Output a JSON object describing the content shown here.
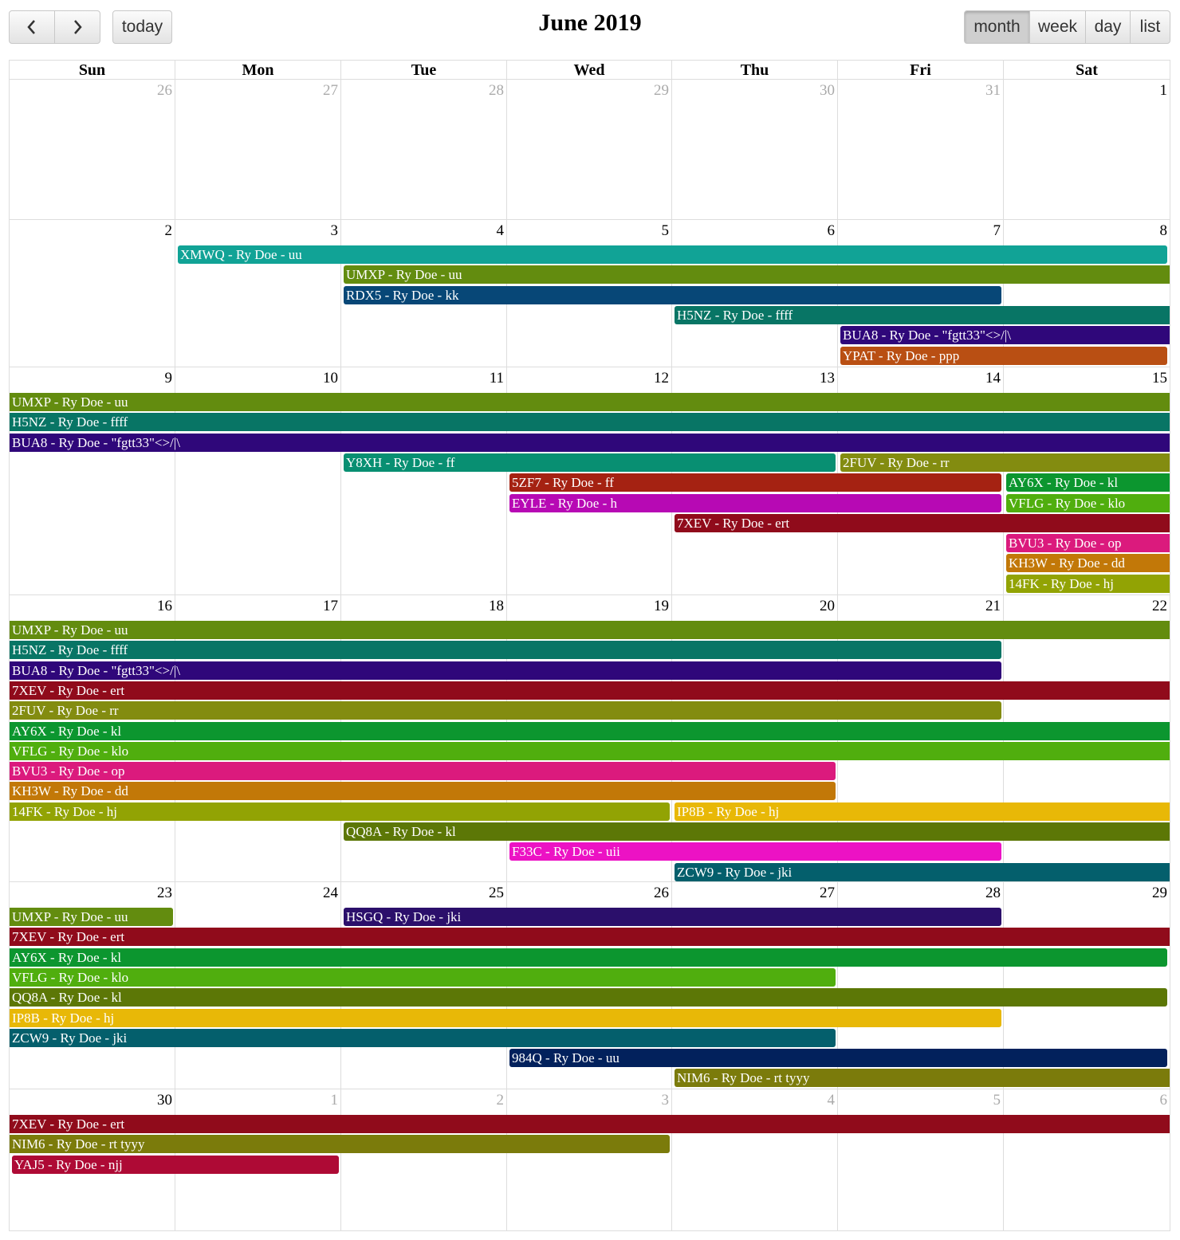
{
  "title": "June 2019",
  "nav": {
    "prev_icon": "‹",
    "next_icon": "›",
    "today_label": "today"
  },
  "views": [
    "month",
    "week",
    "day",
    "list"
  ],
  "active_view": "month",
  "day_headers": [
    "Sun",
    "Mon",
    "Tue",
    "Wed",
    "Thu",
    "Fri",
    "Sat"
  ],
  "weeks": [
    {
      "days": [
        {
          "n": "26",
          "other": true
        },
        {
          "n": "27",
          "other": true
        },
        {
          "n": "28",
          "other": true
        },
        {
          "n": "29",
          "other": true
        },
        {
          "n": "30",
          "other": true
        },
        {
          "n": "31",
          "other": true
        },
        {
          "n": "1",
          "other": false
        }
      ],
      "events": []
    },
    {
      "days": [
        {
          "n": "2",
          "other": false
        },
        {
          "n": "3",
          "other": false
        },
        {
          "n": "4",
          "other": false
        },
        {
          "n": "5",
          "other": false
        },
        {
          "n": "6",
          "other": false
        },
        {
          "n": "7",
          "other": false
        },
        {
          "n": "8",
          "other": false
        }
      ],
      "events": [
        {
          "title": "XMWQ - Ry Doe - uu",
          "color": "#11a396",
          "start": 1,
          "end": 6,
          "row": 0,
          "starts": true,
          "ends": true
        },
        {
          "title": "UMXP - Ry Doe - uu",
          "color": "#638c0f",
          "start": 2,
          "end": 6,
          "row": 1,
          "starts": true,
          "ends": false
        },
        {
          "title": "RDX5 - Ry Doe - kk",
          "color": "#074777",
          "start": 2,
          "end": 5,
          "row": 2,
          "starts": true,
          "ends": true
        },
        {
          "title": "H5NZ - Ry Doe - ffff",
          "color": "#087565",
          "start": 4,
          "end": 6,
          "row": 3,
          "starts": true,
          "ends": false
        },
        {
          "title": "BUA8 - Ry Doe - \"fgtt33\"<>/|\\",
          "color": "#2f077a",
          "start": 5,
          "end": 6,
          "row": 4,
          "starts": true,
          "ends": false
        },
        {
          "title": "YPAT - Ry Doe - ppp",
          "color": "#b94f13",
          "start": 5,
          "end": 6,
          "row": 5,
          "starts": true,
          "ends": true
        }
      ]
    },
    {
      "days": [
        {
          "n": "9",
          "other": false
        },
        {
          "n": "10",
          "other": false
        },
        {
          "n": "11",
          "other": false
        },
        {
          "n": "12",
          "other": false
        },
        {
          "n": "13",
          "other": false
        },
        {
          "n": "14",
          "other": false
        },
        {
          "n": "15",
          "other": false
        }
      ],
      "events": [
        {
          "title": "UMXP - Ry Doe - uu",
          "color": "#638c0f",
          "start": 0,
          "end": 6,
          "row": 0,
          "starts": false,
          "ends": false
        },
        {
          "title": "H5NZ - Ry Doe - ffff",
          "color": "#087565",
          "start": 0,
          "end": 6,
          "row": 1,
          "starts": false,
          "ends": false
        },
        {
          "title": "BUA8 - Ry Doe - \"fgtt33\"<>/|\\",
          "color": "#2f077a",
          "start": 0,
          "end": 6,
          "row": 2,
          "starts": false,
          "ends": false
        },
        {
          "title": "Y8XH - Ry Doe - ff",
          "color": "#088f72",
          "start": 2,
          "end": 4,
          "row": 3,
          "starts": true,
          "ends": true
        },
        {
          "title": "2FUV - Ry Doe - rr",
          "color": "#838c10",
          "start": 5,
          "end": 6,
          "row": 3,
          "starts": true,
          "ends": false
        },
        {
          "title": "5ZF7 - Ry Doe - ff",
          "color": "#a52212",
          "start": 3,
          "end": 5,
          "row": 4,
          "starts": true,
          "ends": true
        },
        {
          "title": "AY6X - Ry Doe - kl",
          "color": "#0c962f",
          "start": 6,
          "end": 6,
          "row": 4,
          "starts": true,
          "ends": false
        },
        {
          "title": "EYLE - Ry Doe - h",
          "color": "#b709b4",
          "start": 3,
          "end": 5,
          "row": 5,
          "starts": true,
          "ends": true
        },
        {
          "title": "VFLG - Ry Doe - klo",
          "color": "#50ae0e",
          "start": 6,
          "end": 6,
          "row": 5,
          "starts": true,
          "ends": false
        },
        {
          "title": "7XEV - Ry Doe - ert",
          "color": "#900b1b",
          "start": 4,
          "end": 6,
          "row": 6,
          "starts": true,
          "ends": false
        },
        {
          "title": "BVU3 - Ry Doe - op",
          "color": "#db1a7d",
          "start": 6,
          "end": 6,
          "row": 7,
          "starts": true,
          "ends": false
        },
        {
          "title": "KH3W - Ry Doe - dd",
          "color": "#c27808",
          "start": 6,
          "end": 6,
          "row": 8,
          "starts": true,
          "ends": false
        },
        {
          "title": "14FK - Ry Doe - hj",
          "color": "#92a304",
          "start": 6,
          "end": 6,
          "row": 9,
          "starts": true,
          "ends": false
        }
      ]
    },
    {
      "days": [
        {
          "n": "16",
          "other": false
        },
        {
          "n": "17",
          "other": false
        },
        {
          "n": "18",
          "other": false
        },
        {
          "n": "19",
          "other": false
        },
        {
          "n": "20",
          "other": false
        },
        {
          "n": "21",
          "other": false
        },
        {
          "n": "22",
          "other": false
        }
      ],
      "events": [
        {
          "title": "UMXP - Ry Doe - uu",
          "color": "#638c0f",
          "start": 0,
          "end": 6,
          "row": 0,
          "starts": false,
          "ends": false
        },
        {
          "title": "H5NZ - Ry Doe - ffff",
          "color": "#087565",
          "start": 0,
          "end": 5,
          "row": 1,
          "starts": false,
          "ends": true
        },
        {
          "title": "BUA8 - Ry Doe - \"fgtt33\"<>/|\\",
          "color": "#2f077a",
          "start": 0,
          "end": 5,
          "row": 2,
          "starts": false,
          "ends": true
        },
        {
          "title": "7XEV - Ry Doe - ert",
          "color": "#900b1b",
          "start": 0,
          "end": 6,
          "row": 3,
          "starts": false,
          "ends": false
        },
        {
          "title": "2FUV - Ry Doe - rr",
          "color": "#838c10",
          "start": 0,
          "end": 5,
          "row": 4,
          "starts": false,
          "ends": true
        },
        {
          "title": "AY6X - Ry Doe - kl",
          "color": "#0c962f",
          "start": 0,
          "end": 6,
          "row": 5,
          "starts": false,
          "ends": false
        },
        {
          "title": "VFLG - Ry Doe - klo",
          "color": "#50ae0e",
          "start": 0,
          "end": 6,
          "row": 6,
          "starts": false,
          "ends": false
        },
        {
          "title": "BVU3 - Ry Doe - op",
          "color": "#db1a7d",
          "start": 0,
          "end": 4,
          "row": 7,
          "starts": false,
          "ends": true
        },
        {
          "title": "KH3W - Ry Doe - dd",
          "color": "#c27808",
          "start": 0,
          "end": 4,
          "row": 8,
          "starts": false,
          "ends": true
        },
        {
          "title": "14FK - Ry Doe - hj",
          "color": "#92a304",
          "start": 0,
          "end": 3,
          "row": 9,
          "starts": false,
          "ends": true
        },
        {
          "title": "IP8B - Ry Doe - hj",
          "color": "#e8b807",
          "start": 4,
          "end": 6,
          "row": 9,
          "starts": true,
          "ends": false
        },
        {
          "title": "QQ8A - Ry Doe - kl",
          "color": "#5c7706",
          "start": 2,
          "end": 6,
          "row": 10,
          "starts": true,
          "ends": false
        },
        {
          "title": "F33C - Ry Doe - uii",
          "color": "#ec12c4",
          "start": 3,
          "end": 5,
          "row": 11,
          "starts": true,
          "ends": true
        },
        {
          "title": "ZCW9 - Ry Doe - jki",
          "color": "#045f6c",
          "start": 4,
          "end": 6,
          "row": 12,
          "starts": true,
          "ends": false
        }
      ]
    },
    {
      "days": [
        {
          "n": "23",
          "other": false
        },
        {
          "n": "24",
          "other": false
        },
        {
          "n": "25",
          "other": false
        },
        {
          "n": "26",
          "other": false
        },
        {
          "n": "27",
          "other": false
        },
        {
          "n": "28",
          "other": false
        },
        {
          "n": "29",
          "other": false
        }
      ],
      "events": [
        {
          "title": "UMXP - Ry Doe - uu",
          "color": "#638c0f",
          "start": 0,
          "end": 0,
          "row": 0,
          "starts": false,
          "ends": true
        },
        {
          "title": "HSGQ - Ry Doe - jki",
          "color": "#2b0f6b",
          "start": 2,
          "end": 5,
          "row": 0,
          "starts": true,
          "ends": true
        },
        {
          "title": "7XEV - Ry Doe - ert",
          "color": "#900b1b",
          "start": 0,
          "end": 6,
          "row": 1,
          "starts": false,
          "ends": false
        },
        {
          "title": "AY6X - Ry Doe - kl",
          "color": "#0c962f",
          "start": 0,
          "end": 6,
          "row": 2,
          "starts": false,
          "ends": true
        },
        {
          "title": "VFLG - Ry Doe - klo",
          "color": "#50ae0e",
          "start": 0,
          "end": 4,
          "row": 3,
          "starts": false,
          "ends": true
        },
        {
          "title": "QQ8A - Ry Doe - kl",
          "color": "#5c7706",
          "start": 0,
          "end": 6,
          "row": 4,
          "starts": false,
          "ends": true
        },
        {
          "title": "IP8B - Ry Doe - hj",
          "color": "#e8b807",
          "start": 0,
          "end": 5,
          "row": 5,
          "starts": false,
          "ends": true
        },
        {
          "title": "ZCW9 - Ry Doe - jki",
          "color": "#045f6c",
          "start": 0,
          "end": 4,
          "row": 6,
          "starts": false,
          "ends": true
        },
        {
          "title": "984Q - Ry Doe - uu",
          "color": "#02215c",
          "start": 3,
          "end": 6,
          "row": 7,
          "starts": true,
          "ends": true
        },
        {
          "title": "NIM6 - Ry Doe - rt tyyy",
          "color": "#7b7b0b",
          "start": 4,
          "end": 6,
          "row": 8,
          "starts": true,
          "ends": false
        }
      ]
    },
    {
      "days": [
        {
          "n": "30",
          "other": false
        },
        {
          "n": "1",
          "other": true
        },
        {
          "n": "2",
          "other": true
        },
        {
          "n": "3",
          "other": true
        },
        {
          "n": "4",
          "other": true
        },
        {
          "n": "5",
          "other": true
        },
        {
          "n": "6",
          "other": true
        }
      ],
      "events": [
        {
          "title": "7XEV - Ry Doe - ert",
          "color": "#900b1b",
          "start": 0,
          "end": 6,
          "row": 0,
          "starts": false,
          "ends": false
        },
        {
          "title": "NIM6 - Ry Doe - rt tyyy",
          "color": "#7b7b0b",
          "start": 0,
          "end": 3,
          "row": 1,
          "starts": false,
          "ends": true
        },
        {
          "title": "YAJ5 - Ry Doe - njj",
          "color": "#ae0a35",
          "start": 0,
          "end": 1,
          "row": 2,
          "starts": true,
          "ends": true
        }
      ]
    }
  ]
}
